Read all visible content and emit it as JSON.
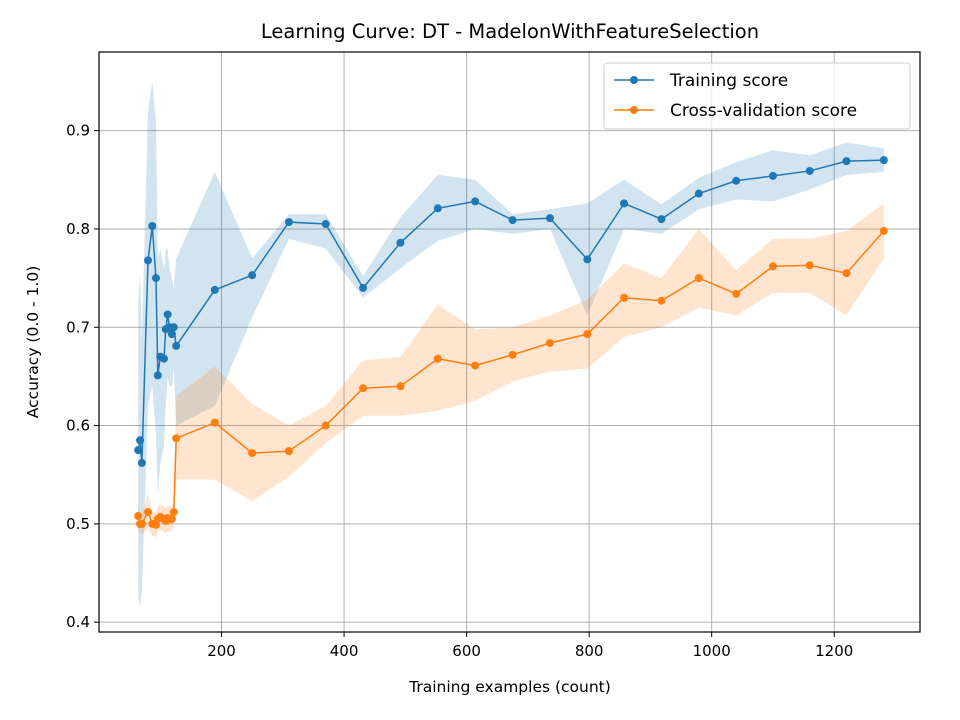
{
  "chart_data": {
    "type": "line",
    "title": "Learning Curve: DT - MadelonWithFeatureSelection",
    "xlabel": "Training examples (count)",
    "ylabel": "Accuracy (0.0 - 1.0)",
    "xlim": [
      0,
      1340
    ],
    "ylim": [
      0.39,
      0.98
    ],
    "xticks": [
      200,
      400,
      600,
      800,
      1000,
      1200
    ],
    "yticks": [
      0.4,
      0.5,
      0.6,
      0.7,
      0.8,
      0.9
    ],
    "xtick_labels": [
      "200",
      "400",
      "600",
      "800",
      "1000",
      "1200"
    ],
    "ytick_labels": [
      "0.4",
      "0.5",
      "0.6",
      "0.7",
      "0.8",
      "0.9"
    ],
    "grid": true,
    "legend_position": "top-right",
    "series": [
      {
        "name": "Training score",
        "color": "#1f77b4",
        "band_color": "#1f77b4",
        "points": [
          [
            64,
            0.575
          ],
          [
            67,
            0.585
          ],
          [
            70,
            0.562
          ],
          [
            80,
            0.768
          ],
          [
            87,
            0.803
          ],
          [
            93,
            0.75
          ],
          [
            96,
            0.651
          ],
          [
            100,
            0.67
          ],
          [
            106,
            0.668
          ],
          [
            109,
            0.698
          ],
          [
            112,
            0.713
          ],
          [
            115,
            0.7
          ],
          [
            119,
            0.693
          ],
          [
            122,
            0.7
          ],
          [
            126,
            0.681
          ],
          [
            189,
            0.738
          ],
          [
            250,
            0.753
          ],
          [
            310,
            0.807
          ],
          [
            370,
            0.805
          ],
          [
            431,
            0.74
          ],
          [
            492,
            0.786
          ],
          [
            553,
            0.821
          ],
          [
            614,
            0.828
          ],
          [
            675,
            0.809
          ],
          [
            736,
            0.811
          ],
          [
            797,
            0.769
          ],
          [
            857,
            0.826
          ],
          [
            918,
            0.81
          ],
          [
            979,
            0.836
          ],
          [
            1040,
            0.849
          ],
          [
            1100,
            0.854
          ],
          [
            1160,
            0.859
          ],
          [
            1220,
            0.869
          ],
          [
            1281,
            0.87
          ]
        ],
        "band": [
          [
            64,
            0.425,
            0.725
          ],
          [
            67,
            0.415,
            0.755
          ],
          [
            70,
            0.43,
            0.69
          ],
          [
            80,
            0.62,
            0.92
          ],
          [
            87,
            0.64,
            0.95
          ],
          [
            93,
            0.59,
            0.91
          ],
          [
            96,
            0.53,
            0.77
          ],
          [
            100,
            0.56,
            0.78
          ],
          [
            106,
            0.58,
            0.76
          ],
          [
            109,
            0.62,
            0.78
          ],
          [
            112,
            0.65,
            0.78
          ],
          [
            115,
            0.64,
            0.76
          ],
          [
            119,
            0.64,
            0.75
          ],
          [
            122,
            0.66,
            0.74
          ],
          [
            126,
            0.6,
            0.77
          ],
          [
            189,
            0.62,
            0.858
          ],
          [
            250,
            0.71,
            0.77
          ],
          [
            310,
            0.79,
            0.815
          ],
          [
            370,
            0.78,
            0.815
          ],
          [
            431,
            0.73,
            0.752
          ],
          [
            492,
            0.76,
            0.812
          ],
          [
            553,
            0.788,
            0.855
          ],
          [
            614,
            0.8,
            0.85
          ],
          [
            675,
            0.795,
            0.815
          ],
          [
            736,
            0.8,
            0.82
          ],
          [
            797,
            0.712,
            0.826
          ],
          [
            857,
            0.8,
            0.85
          ],
          [
            918,
            0.795,
            0.825
          ],
          [
            979,
            0.82,
            0.852
          ],
          [
            1040,
            0.83,
            0.868
          ],
          [
            1100,
            0.828,
            0.88
          ],
          [
            1160,
            0.84,
            0.875
          ],
          [
            1220,
            0.855,
            0.888
          ],
          [
            1281,
            0.858,
            0.882
          ]
        ]
      },
      {
        "name": "Cross-validation score",
        "color": "#ff7f0e",
        "band_color": "#ff7f0e",
        "points": [
          [
            64,
            0.508
          ],
          [
            67,
            0.5
          ],
          [
            70,
            0.5
          ],
          [
            80,
            0.512
          ],
          [
            87,
            0.5
          ],
          [
            93,
            0.499
          ],
          [
            96,
            0.505
          ],
          [
            100,
            0.507
          ],
          [
            106,
            0.505
          ],
          [
            109,
            0.503
          ],
          [
            112,
            0.506
          ],
          [
            115,
            0.505
          ],
          [
            119,
            0.505
          ],
          [
            122,
            0.512
          ],
          [
            126,
            0.587
          ],
          [
            189,
            0.603
          ],
          [
            250,
            0.572
          ],
          [
            310,
            0.574
          ],
          [
            370,
            0.6
          ],
          [
            431,
            0.638
          ],
          [
            492,
            0.64
          ],
          [
            553,
            0.668
          ],
          [
            614,
            0.661
          ],
          [
            675,
            0.672
          ],
          [
            736,
            0.684
          ],
          [
            797,
            0.693
          ],
          [
            857,
            0.73
          ],
          [
            918,
            0.727
          ],
          [
            979,
            0.75
          ],
          [
            1040,
            0.734
          ],
          [
            1100,
            0.762
          ],
          [
            1160,
            0.763
          ],
          [
            1220,
            0.755
          ],
          [
            1281,
            0.798
          ]
        ],
        "band": [
          [
            64,
            0.495,
            0.521
          ],
          [
            67,
            0.49,
            0.51
          ],
          [
            70,
            0.49,
            0.51
          ],
          [
            80,
            0.495,
            0.53
          ],
          [
            87,
            0.488,
            0.512
          ],
          [
            93,
            0.486,
            0.512
          ],
          [
            96,
            0.492,
            0.518
          ],
          [
            100,
            0.494,
            0.52
          ],
          [
            106,
            0.492,
            0.518
          ],
          [
            109,
            0.49,
            0.516
          ],
          [
            112,
            0.493,
            0.519
          ],
          [
            115,
            0.492,
            0.518
          ],
          [
            119,
            0.492,
            0.518
          ],
          [
            122,
            0.498,
            0.526
          ],
          [
            126,
            0.545,
            0.63
          ],
          [
            189,
            0.545,
            0.66
          ],
          [
            250,
            0.523,
            0.622
          ],
          [
            310,
            0.548,
            0.6
          ],
          [
            370,
            0.582,
            0.62
          ],
          [
            431,
            0.61,
            0.666
          ],
          [
            492,
            0.61,
            0.67
          ],
          [
            553,
            0.615,
            0.723
          ],
          [
            614,
            0.625,
            0.698
          ],
          [
            675,
            0.645,
            0.7
          ],
          [
            736,
            0.655,
            0.712
          ],
          [
            797,
            0.658,
            0.728
          ],
          [
            857,
            0.69,
            0.765
          ],
          [
            918,
            0.7,
            0.75
          ],
          [
            979,
            0.72,
            0.8
          ],
          [
            1040,
            0.712,
            0.758
          ],
          [
            1100,
            0.735,
            0.79
          ],
          [
            1160,
            0.735,
            0.79
          ],
          [
            1220,
            0.712,
            0.798
          ],
          [
            1281,
            0.77,
            0.826
          ]
        ]
      }
    ]
  }
}
